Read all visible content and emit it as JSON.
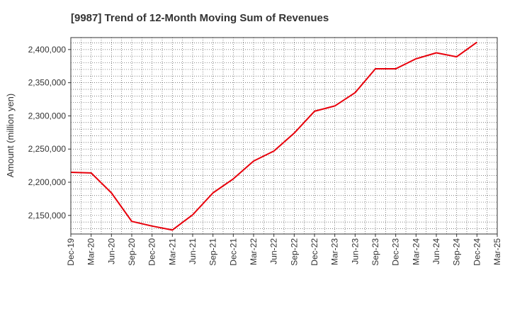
{
  "chart_data": {
    "type": "line",
    "title": "[9987]  Trend of 12-Month Moving Sum of Revenues",
    "xlabel": "",
    "ylabel": "Amount (million yen)",
    "categories": [
      "Dec-19",
      "Mar-20",
      "Jun-20",
      "Sep-20",
      "Dec-20",
      "Mar-21",
      "Jun-21",
      "Sep-21",
      "Dec-21",
      "Mar-22",
      "Jun-22",
      "Sep-22",
      "Dec-22",
      "Mar-23",
      "Jun-23",
      "Sep-23",
      "Dec-23",
      "Mar-24",
      "Jun-24",
      "Sep-24",
      "Dec-24",
      "Mar-25"
    ],
    "yticks": [
      2150000,
      2200000,
      2250000,
      2300000,
      2350000,
      2400000
    ],
    "ytick_labels": [
      "2,150,000",
      "2,200,000",
      "2,250,000",
      "2,300,000",
      "2,350,000",
      "2,400,000"
    ],
    "ylim": [
      2122000,
      2418000
    ],
    "grid": true,
    "series": [
      {
        "color": "#e8000b",
        "values": [
          2215000,
          2214000,
          2184000,
          2141000,
          2134000,
          2128000,
          2151000,
          2184000,
          2205000,
          2232000,
          2247000,
          2274000,
          2307000,
          2315000,
          2335000,
          2371000,
          2371000,
          2386000,
          2395000,
          2389000,
          2411000,
          null
        ]
      }
    ]
  }
}
